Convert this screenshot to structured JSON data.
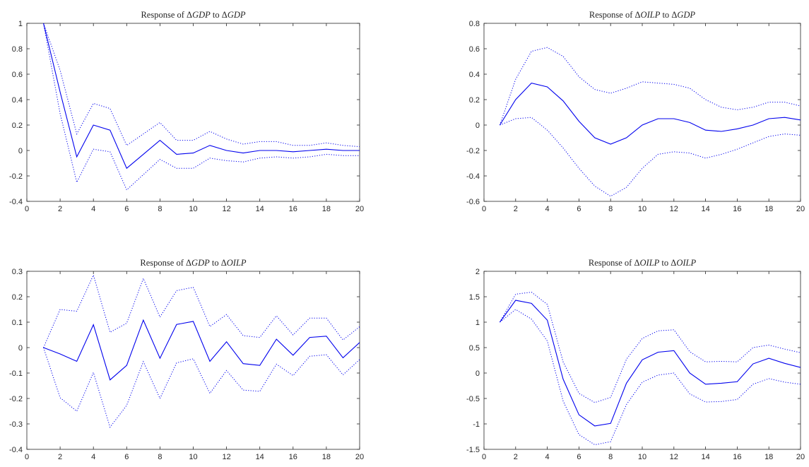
{
  "colors": {
    "series": "#0000ee",
    "axis": "#262626",
    "background": "#ffffff"
  },
  "chart_data": [
    {
      "type": "line",
      "title_prefix": "Response of ",
      "title_response": "GDP",
      "title_mid": " to ",
      "title_shock": "GDP",
      "xlim": [
        0,
        20
      ],
      "ylim": [
        -0.4,
        1
      ],
      "xticks": [
        0,
        2,
        4,
        6,
        8,
        10,
        12,
        14,
        16,
        18,
        20
      ],
      "yticks": [
        -0.4,
        -0.2,
        0,
        0.2,
        0.4,
        0.6,
        0.8,
        1
      ],
      "x": [
        1,
        2,
        3,
        4,
        5,
        6,
        7,
        8,
        9,
        10,
        11,
        12,
        13,
        14,
        15,
        16,
        17,
        18,
        19,
        20
      ],
      "series": [
        {
          "style": "solid",
          "values": [
            1.0,
            0.46,
            -0.05,
            0.2,
            0.16,
            -0.14,
            -0.03,
            0.08,
            -0.03,
            -0.02,
            0.04,
            0.0,
            -0.02,
            0.0,
            0.0,
            -0.01,
            0.0,
            0.01,
            0.0,
            0.0
          ]
        },
        {
          "style": "dotted",
          "values": [
            1.0,
            0.63,
            0.13,
            0.37,
            0.33,
            0.04,
            0.13,
            0.22,
            0.08,
            0.08,
            0.15,
            0.09,
            0.05,
            0.07,
            0.07,
            0.04,
            0.04,
            0.06,
            0.04,
            0.03
          ]
        },
        {
          "style": "dotted",
          "values": [
            1.0,
            0.29,
            -0.25,
            0.01,
            -0.01,
            -0.31,
            -0.19,
            -0.07,
            -0.14,
            -0.14,
            -0.06,
            -0.08,
            -0.09,
            -0.06,
            -0.05,
            -0.06,
            -0.05,
            -0.03,
            -0.04,
            -0.04
          ]
        }
      ]
    },
    {
      "type": "line",
      "title_prefix": "Response of ",
      "title_response": "OILP",
      "title_mid": " to ",
      "title_shock": "GDP",
      "xlim": [
        0,
        20
      ],
      "ylim": [
        -0.6,
        0.8
      ],
      "xticks": [
        0,
        2,
        4,
        6,
        8,
        10,
        12,
        14,
        16,
        18,
        20
      ],
      "yticks": [
        -0.6,
        -0.4,
        -0.2,
        0,
        0.2,
        0.4,
        0.6,
        0.8
      ],
      "x": [
        1,
        2,
        3,
        4,
        5,
        6,
        7,
        8,
        9,
        10,
        11,
        12,
        13,
        14,
        15,
        16,
        17,
        18,
        19,
        20
      ],
      "series": [
        {
          "style": "solid",
          "values": [
            0.0,
            0.2,
            0.33,
            0.3,
            0.19,
            0.03,
            -0.1,
            -0.15,
            -0.1,
            0.0,
            0.05,
            0.05,
            0.02,
            -0.04,
            -0.05,
            -0.03,
            0.0,
            0.05,
            0.06,
            0.04
          ]
        },
        {
          "style": "dotted",
          "values": [
            0.0,
            0.36,
            0.58,
            0.61,
            0.54,
            0.38,
            0.28,
            0.25,
            0.29,
            0.34,
            0.33,
            0.32,
            0.29,
            0.2,
            0.14,
            0.12,
            0.14,
            0.18,
            0.18,
            0.15
          ]
        },
        {
          "style": "dotted",
          "values": [
            0.0,
            0.05,
            0.06,
            -0.04,
            -0.18,
            -0.34,
            -0.48,
            -0.56,
            -0.49,
            -0.34,
            -0.23,
            -0.21,
            -0.22,
            -0.26,
            -0.23,
            -0.19,
            -0.14,
            -0.09,
            -0.07,
            -0.08
          ]
        }
      ]
    },
    {
      "type": "line",
      "title_prefix": "Response of ",
      "title_response": "GDP",
      "title_mid": " to ",
      "title_shock": "OILP",
      "xlim": [
        0,
        20
      ],
      "ylim": [
        -0.4,
        0.3
      ],
      "xticks": [
        0,
        2,
        4,
        6,
        8,
        10,
        12,
        14,
        16,
        18,
        20
      ],
      "yticks": [
        -0.4,
        -0.3,
        -0.2,
        -0.1,
        0,
        0.1,
        0.2,
        0.3
      ],
      "x": [
        1,
        2,
        3,
        4,
        5,
        6,
        7,
        8,
        9,
        10,
        11,
        12,
        13,
        14,
        15,
        16,
        17,
        18,
        19,
        20
      ],
      "series": [
        {
          "style": "solid",
          "values": [
            0.0,
            -0.025,
            -0.054,
            0.09,
            -0.127,
            -0.07,
            0.108,
            -0.042,
            0.091,
            0.103,
            -0.054,
            0.023,
            -0.063,
            -0.07,
            0.033,
            -0.03,
            0.04,
            0.045,
            -0.04,
            0.02
          ]
        },
        {
          "style": "dotted",
          "values": [
            0.0,
            0.15,
            0.143,
            0.285,
            0.06,
            0.096,
            0.272,
            0.12,
            0.224,
            0.237,
            0.083,
            0.13,
            0.047,
            0.04,
            0.125,
            0.05,
            0.116,
            0.116,
            0.03,
            0.082
          ]
        },
        {
          "style": "dotted",
          "values": [
            0.0,
            -0.197,
            -0.25,
            -0.098,
            -0.313,
            -0.227,
            -0.055,
            -0.2,
            -0.06,
            -0.044,
            -0.18,
            -0.09,
            -0.167,
            -0.172,
            -0.065,
            -0.11,
            -0.034,
            -0.028,
            -0.107,
            -0.047
          ]
        }
      ]
    },
    {
      "type": "line",
      "title_prefix": "Response of ",
      "title_response": "OILP",
      "title_mid": " to ",
      "title_shock": "OILP",
      "xlim": [
        0,
        20
      ],
      "ylim": [
        -1.5,
        2
      ],
      "xticks": [
        0,
        2,
        4,
        6,
        8,
        10,
        12,
        14,
        16,
        18,
        20
      ],
      "yticks": [
        -1.5,
        -1,
        -0.5,
        0,
        0.5,
        1,
        1.5,
        2
      ],
      "x": [
        1,
        2,
        3,
        4,
        5,
        6,
        7,
        8,
        9,
        10,
        11,
        12,
        13,
        14,
        15,
        16,
        17,
        18,
        19,
        20
      ],
      "series": [
        {
          "style": "solid",
          "values": [
            1.0,
            1.43,
            1.37,
            1.04,
            -0.12,
            -0.82,
            -1.04,
            -0.99,
            -0.2,
            0.26,
            0.41,
            0.44,
            0.0,
            -0.22,
            -0.2,
            -0.17,
            0.18,
            0.29,
            0.19,
            0.11
          ]
        },
        {
          "style": "dotted",
          "values": [
            1.0,
            1.55,
            1.59,
            1.35,
            0.22,
            -0.4,
            -0.58,
            -0.48,
            0.27,
            0.68,
            0.83,
            0.85,
            0.42,
            0.22,
            0.23,
            0.22,
            0.5,
            0.55,
            0.47,
            0.4
          ]
        },
        {
          "style": "dotted",
          "values": [
            1.0,
            1.25,
            1.06,
            0.63,
            -0.55,
            -1.21,
            -1.41,
            -1.35,
            -0.62,
            -0.18,
            -0.04,
            0.0,
            -0.41,
            -0.57,
            -0.56,
            -0.52,
            -0.22,
            -0.11,
            -0.18,
            -0.22
          ]
        }
      ]
    }
  ]
}
